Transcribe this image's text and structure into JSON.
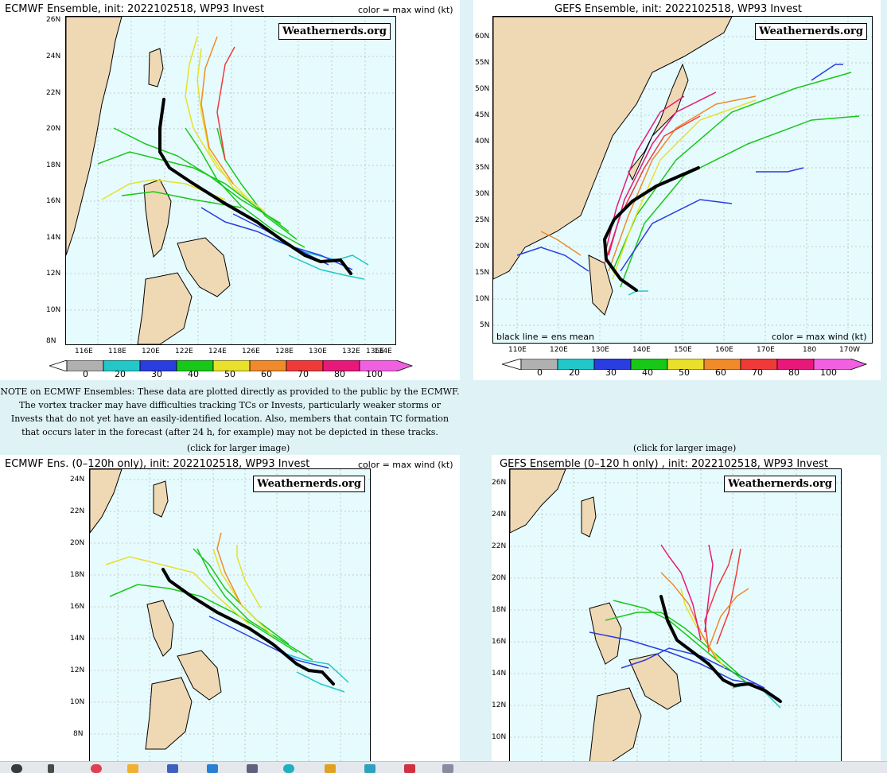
{
  "panels": {
    "ecmwf": {
      "title": "ECMWF  Ensemble,  init:  2022102518,  WP93  Invest",
      "color_note": "color = max wind (kt)",
      "watermark": "Weathernerds.org",
      "lat_labels": [
        "26N",
        "24N",
        "22N",
        "20N",
        "18N",
        "16N",
        "14N",
        "12N",
        "10N",
        "8N"
      ],
      "lon_labels": [
        "116E",
        "118E",
        "120E",
        "122E",
        "124E",
        "126E",
        "128E",
        "130E",
        "132E",
        "134E",
        "136E"
      ]
    },
    "gefs": {
      "title": "GEFS  Ensemble,  init:  2022102518,  WP93  Invest",
      "watermark": "Weathernerds.org",
      "footer_left": "black line = ens mean",
      "footer_right": "color = max wind (kt)",
      "lat_labels": [
        "60N",
        "55N",
        "50N",
        "45N",
        "40N",
        "35N",
        "30N",
        "25N",
        "20N",
        "15N",
        "10N",
        "5N"
      ],
      "lon_labels": [
        "110E",
        "120E",
        "130E",
        "140E",
        "150E",
        "160E",
        "170E",
        "180",
        "170W"
      ]
    },
    "ecmwf_120": {
      "title": "ECMWF  Ens.  (0–120h  only),  init:  2022102518,  WP93  Invest",
      "color_note": "color = max wind (kt)",
      "watermark": "Weathernerds.org",
      "lat_labels": [
        "24N",
        "22N",
        "20N",
        "18N",
        "16N",
        "14N",
        "12N",
        "10N",
        "8N"
      ]
    },
    "gefs_120": {
      "title": "GEFS  Ensemble  (0–120  h  only)  ,  init:  2022102518,  WP93  Invest",
      "watermark": "Weathernerds.org",
      "lat_labels": [
        "26N",
        "24N",
        "22N",
        "20N",
        "18N",
        "16N",
        "14N",
        "12N",
        "10N"
      ]
    }
  },
  "colorbar": {
    "labels": [
      "0",
      "20",
      "30",
      "40",
      "50",
      "60",
      "70",
      "80",
      "100"
    ],
    "colors": [
      "#b0b0b0",
      "#22c8c8",
      "#2a3de0",
      "#18c818",
      "#e8e02a",
      "#f08a2a",
      "#f03a3a",
      "#e8187a",
      "#f060e0"
    ]
  },
  "note": {
    "lines": [
      "NOTE on ECMWF Ensembles: These data are plotted directly as provided to the public by the ECMWF.",
      "The vortex tracker may have difficulties tracking TCs or Invests, particularly weaker storms or",
      "Invests that do not yet have an easily-identified location. Also, members that contain TC formation",
      "that occurs later in the forecast (after 24 h, for example) may not be depicted in these tracks."
    ]
  },
  "click_larger": "(click for larger image)",
  "click_larger_2": "(click for larger image)"
}
